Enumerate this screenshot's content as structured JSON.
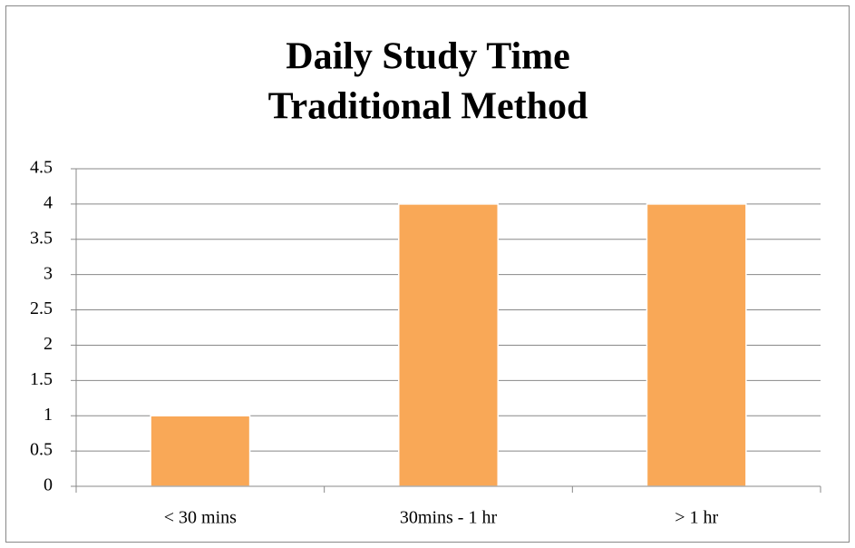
{
  "chart_data": {
    "type": "bar",
    "title": [
      "Daily Study Time",
      "Traditional Method"
    ],
    "categories": [
      "< 30 mins",
      "30mins - 1 hr",
      "> 1 hr"
    ],
    "values": [
      1,
      4,
      4
    ],
    "color": "#f9a857",
    "ylim": [
      0,
      4.5
    ],
    "yticks": [
      0,
      0.5,
      1,
      1.5,
      2,
      2.5,
      3,
      3.5,
      4,
      4.5
    ],
    "grid": true
  }
}
